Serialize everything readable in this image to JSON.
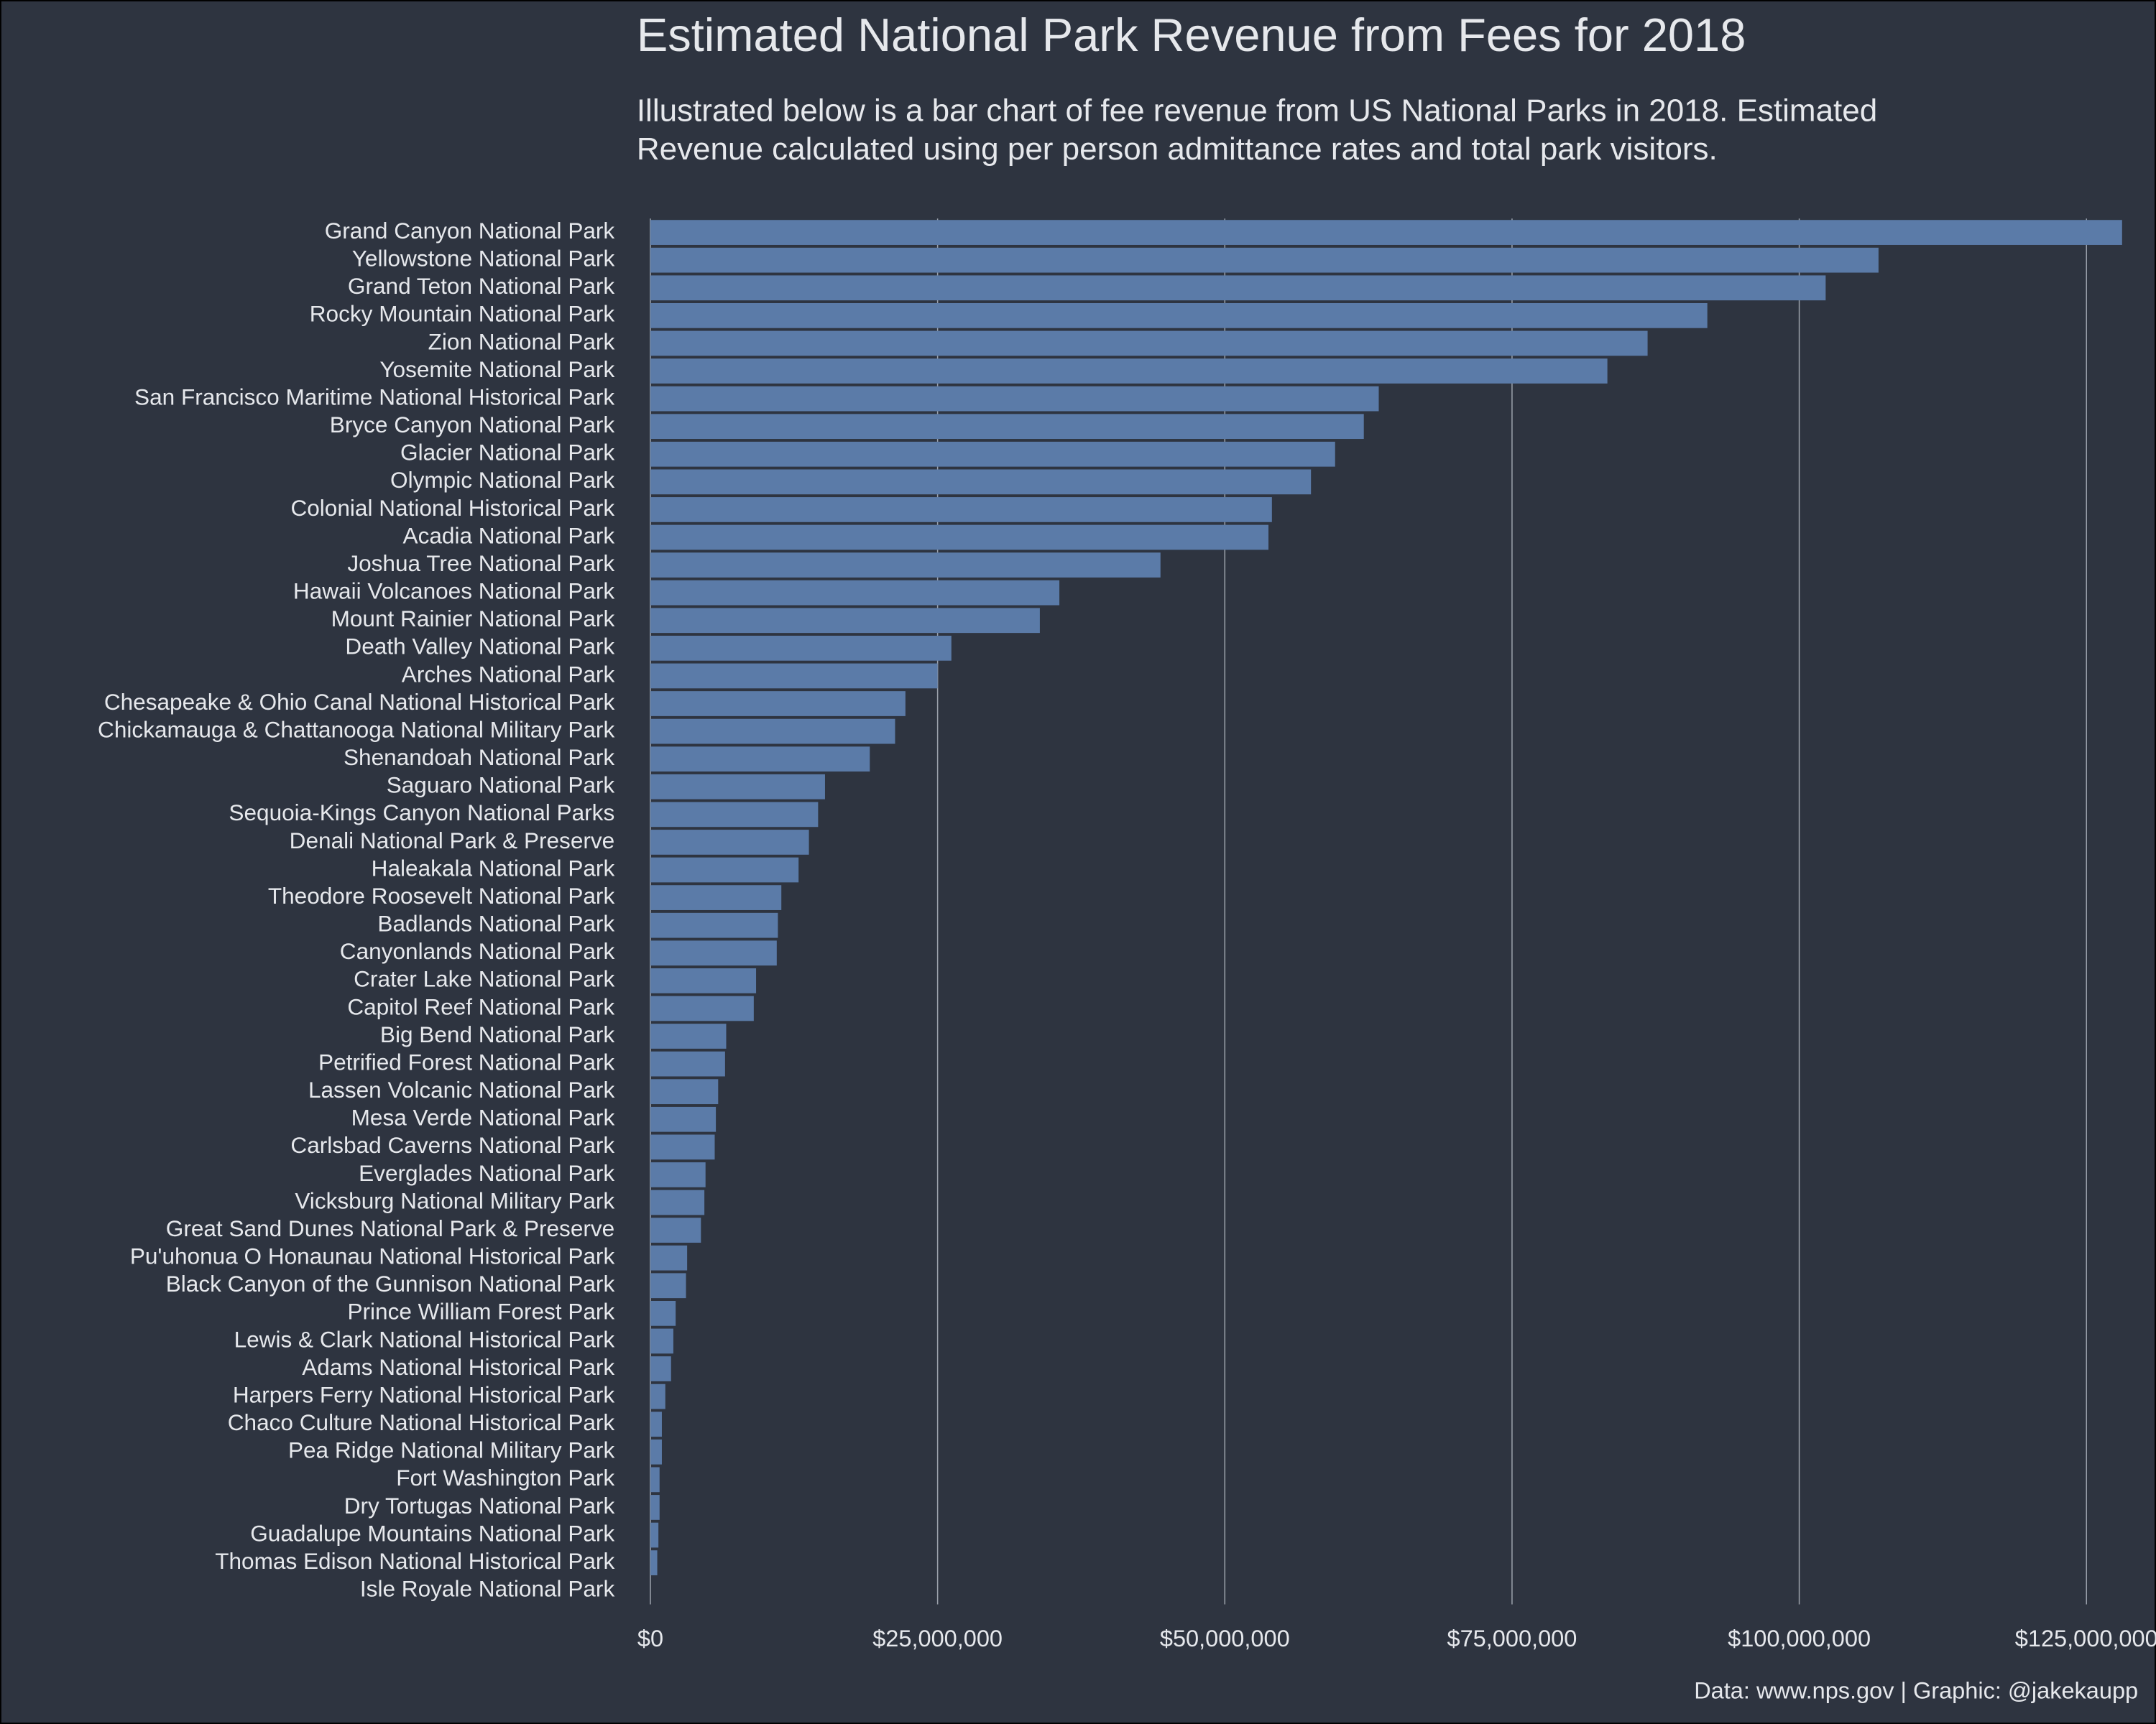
{
  "chart_data": {
    "type": "barh",
    "title": "Estimated National Park Revenue from Fees for 2018",
    "subtitle": [
      "Illustrated below is a bar chart of fee revenue from US National Parks in 2018. Estimated",
      "Revenue calculated using per person admittance rates and total park visitors."
    ],
    "caption": "Data: www.nps.gov | Graphic: @jakekaupp",
    "categories": [
      "Grand Canyon National Park",
      "Yellowstone National Park",
      "Grand Teton National Park",
      "Rocky Mountain National Park",
      "Zion National Park",
      "Yosemite National Park",
      "San Francisco Maritime National Historical Park",
      "Bryce Canyon National Park",
      "Glacier National Park",
      "Olympic National Park",
      "Colonial National Historical Park",
      "Acadia National Park",
      "Joshua Tree National Park",
      "Hawaii Volcanoes National Park",
      "Mount Rainier National Park",
      "Death Valley National Park",
      "Arches National Park",
      "Chesapeake & Ohio Canal National Historical Park",
      "Chickamauga & Chattanooga National Military Park",
      "Shenandoah National Park",
      "Saguaro National Park",
      "Sequoia-Kings Canyon National Parks",
      "Denali National Park & Preserve",
      "Haleakala National Park",
      "Theodore Roosevelt National Park",
      "Badlands National Park",
      "Canyonlands National Park",
      "Crater Lake National Park",
      "Capitol Reef National Park",
      "Big Bend National Park",
      "Petrified Forest National Park",
      "Lassen Volcanic National Park",
      "Mesa Verde National Park",
      "Carlsbad Caverns National Park",
      "Everglades National Park",
      "Vicksburg National Military Park",
      "Great Sand Dunes National Park & Preserve",
      "Pu'uhonua O Honaunau National Historical Park",
      "Black Canyon of the Gunnison National Park",
      "Prince William Forest Park",
      "Lewis & Clark National Historical Park",
      "Adams National Historical Park",
      "Harpers Ferry National Historical Park",
      "Chaco Culture National Historical Park",
      "Pea Ridge National Military Park",
      "Fort Washington Park",
      "Dry Tortugas National Park",
      "Guadalupe Mountains National Park",
      "Thomas Edison National Historical Park",
      "Isle Royale National Park"
    ],
    "values": [
      128100000,
      106900000,
      102300000,
      92000000,
      86800000,
      83300000,
      63400000,
      62100000,
      59600000,
      57500000,
      54100000,
      53800000,
      44400000,
      35600000,
      33900000,
      26200000,
      25000000,
      22200000,
      21300000,
      19100000,
      15200000,
      14600000,
      13800000,
      12900000,
      11400000,
      11100000,
      11000000,
      9200000,
      9000000,
      6600000,
      6500000,
      5900000,
      5700000,
      5600000,
      4800000,
      4700000,
      4400000,
      3200000,
      3100000,
      2200000,
      2000000,
      1800000,
      1300000,
      1000000,
      1000000,
      800000,
      800000,
      700000,
      600000,
      0
    ],
    "color": "#5b7ba8",
    "xlim": [
      0,
      128300000
    ],
    "xticks": [
      {
        "value": 0,
        "label": "$0"
      },
      {
        "value": 25000000,
        "label": "$25,000,000"
      },
      {
        "value": 50000000,
        "label": "$50,000,000"
      },
      {
        "value": 75000000,
        "label": "$75,000,000"
      },
      {
        "value": 100000000,
        "label": "$100,000,000"
      },
      {
        "value": 125000000,
        "label": "$125,000,000"
      }
    ],
    "grid": true
  }
}
